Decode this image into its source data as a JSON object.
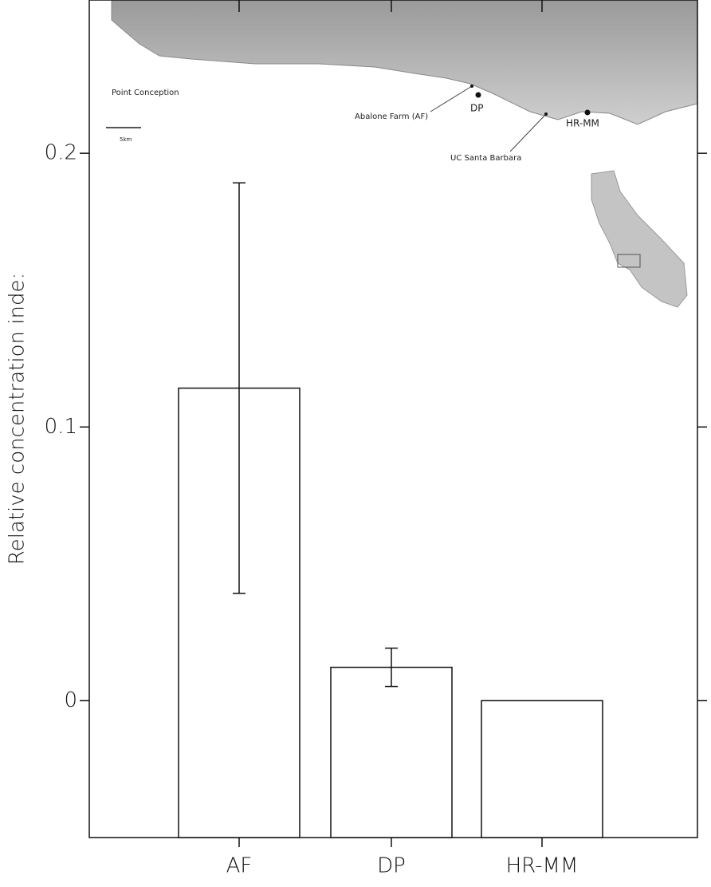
{
  "chart_data": {
    "type": "bar",
    "y_label": "Relative concentration inde:",
    "categories": [
      "AF",
      "DP",
      "HR-MM"
    ],
    "values": [
      0.1142,
      0.0122,
      0
    ],
    "errors": [
      0.075,
      0.007,
      0
    ],
    "color": "#ffffff",
    "ylim": [
      -0.05,
      0.256
    ],
    "yticks": [
      0,
      0.1,
      0.2
    ],
    "inset_labels": [
      "Point Conception",
      "5km",
      "Abalone Farm (AF)",
      "DP",
      "UC Santa Barbara",
      "HR-MM"
    ]
  }
}
